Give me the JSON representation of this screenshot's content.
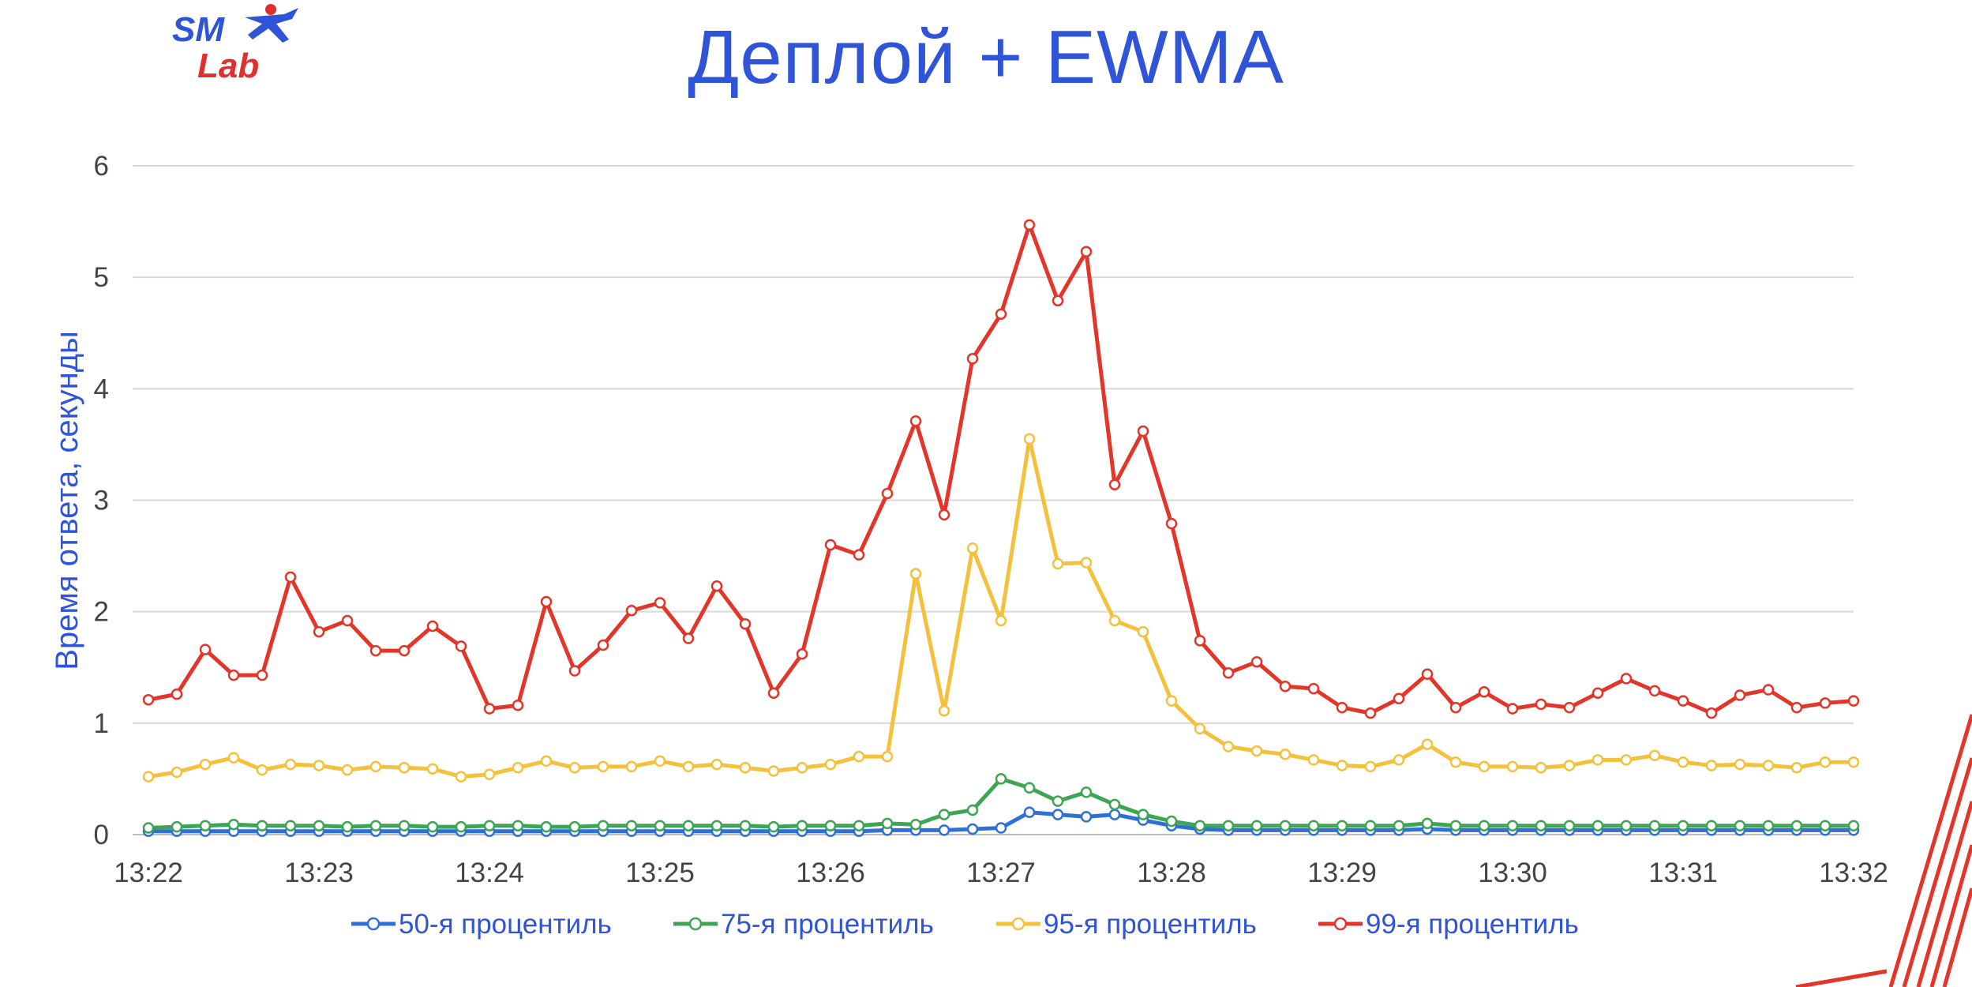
{
  "header": {
    "title": "Деплой + EWMA"
  },
  "logo": {
    "line1": "SM",
    "line2": "Lab",
    "blue": "#2f54d8",
    "red": "#e02f2f"
  },
  "chart_data": {
    "type": "line",
    "title": "Деплой + EWMA",
    "xlabel": "",
    "ylabel": "Время ответа, секунды",
    "ylim": [
      0,
      6
    ],
    "yticks": [
      "0",
      "1",
      "2",
      "3",
      "4",
      "5",
      "6"
    ],
    "xlim": [
      0,
      60
    ],
    "xticks": [
      {
        "x": 0,
        "label": "13:22"
      },
      {
        "x": 6,
        "label": "13:23"
      },
      {
        "x": 12,
        "label": "13:24"
      },
      {
        "x": 18,
        "label": "13:25"
      },
      {
        "x": 24,
        "label": "13:26"
      },
      {
        "x": 30,
        "label": "13:27"
      },
      {
        "x": 36,
        "label": "13:28"
      },
      {
        "x": 42,
        "label": "13:29"
      },
      {
        "x": 48,
        "label": "13:30"
      },
      {
        "x": 54,
        "label": "13:31"
      },
      {
        "x": 60,
        "label": "13:32"
      }
    ],
    "grid": true,
    "legend": "bottom",
    "series": [
      {
        "name": "50-я процентиль",
        "color": "#2f6fd6",
        "values": [
          0.03,
          0.03,
          0.03,
          0.03,
          0.03,
          0.03,
          0.03,
          0.03,
          0.03,
          0.03,
          0.03,
          0.03,
          0.03,
          0.03,
          0.03,
          0.03,
          0.03,
          0.03,
          0.03,
          0.03,
          0.03,
          0.03,
          0.03,
          0.03,
          0.03,
          0.03,
          0.04,
          0.04,
          0.04,
          0.05,
          0.06,
          0.2,
          0.18,
          0.16,
          0.18,
          0.13,
          0.08,
          0.05,
          0.04,
          0.04,
          0.04,
          0.04,
          0.04,
          0.04,
          0.04,
          0.05,
          0.04,
          0.04,
          0.04,
          0.04,
          0.04,
          0.04,
          0.04,
          0.04,
          0.04,
          0.04,
          0.04,
          0.04,
          0.04,
          0.04,
          0.04
        ]
      },
      {
        "name": "75-я процентиль",
        "color": "#3da654",
        "values": [
          0.06,
          0.07,
          0.08,
          0.09,
          0.08,
          0.08,
          0.08,
          0.07,
          0.08,
          0.08,
          0.07,
          0.07,
          0.08,
          0.08,
          0.07,
          0.07,
          0.08,
          0.08,
          0.08,
          0.08,
          0.08,
          0.08,
          0.07,
          0.08,
          0.08,
          0.08,
          0.1,
          0.09,
          0.18,
          0.22,
          0.5,
          0.42,
          0.3,
          0.38,
          0.27,
          0.18,
          0.12,
          0.08,
          0.08,
          0.08,
          0.08,
          0.08,
          0.08,
          0.08,
          0.08,
          0.1,
          0.08,
          0.08,
          0.08,
          0.08,
          0.08,
          0.08,
          0.08,
          0.08,
          0.08,
          0.08,
          0.08,
          0.08,
          0.08,
          0.08,
          0.08
        ]
      },
      {
        "name": "95-я процентиль",
        "color": "#f4c13d",
        "values": [
          0.52,
          0.56,
          0.63,
          0.69,
          0.58,
          0.63,
          0.62,
          0.58,
          0.61,
          0.6,
          0.59,
          0.52,
          0.54,
          0.6,
          0.66,
          0.6,
          0.61,
          0.61,
          0.66,
          0.61,
          0.63,
          0.6,
          0.57,
          0.6,
          0.63,
          0.7,
          0.7,
          2.34,
          1.11,
          2.57,
          1.92,
          3.55,
          2.43,
          2.44,
          1.92,
          1.82,
          1.2,
          0.95,
          0.79,
          0.75,
          0.72,
          0.67,
          0.62,
          0.61,
          0.67,
          0.81,
          0.65,
          0.61,
          0.61,
          0.6,
          0.62,
          0.67,
          0.67,
          0.71,
          0.65,
          0.62,
          0.63,
          0.62,
          0.6,
          0.65,
          0.65
        ]
      },
      {
        "name": "99-я процентиль",
        "color": "#e33529",
        "values": [
          1.21,
          1.26,
          1.66,
          1.43,
          1.43,
          2.31,
          1.82,
          1.92,
          1.65,
          1.65,
          1.87,
          1.69,
          1.13,
          1.16,
          2.09,
          1.47,
          1.7,
          2.01,
          2.08,
          1.76,
          2.23,
          1.89,
          1.27,
          1.62,
          2.6,
          2.51,
          3.06,
          3.71,
          2.87,
          4.27,
          4.67,
          5.47,
          4.79,
          5.23,
          3.14,
          3.62,
          2.79,
          1.74,
          1.45,
          1.55,
          1.33,
          1.31,
          1.14,
          1.09,
          1.22,
          1.44,
          1.14,
          1.28,
          1.13,
          1.17,
          1.14,
          1.27,
          1.4,
          1.29,
          1.2,
          1.09,
          1.25,
          1.3,
          1.14,
          1.18,
          1.2
        ]
      }
    ]
  }
}
